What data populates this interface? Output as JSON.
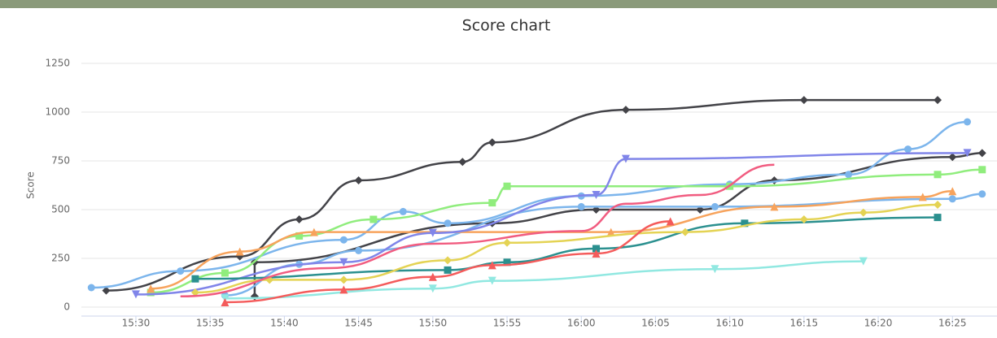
{
  "chart_data": {
    "type": "line",
    "title": "Score chart",
    "y_label": "Score",
    "xlim": [
      "15:26",
      "16:28"
    ],
    "xticks": [
      "15:30",
      "15:35",
      "15:40",
      "15:45",
      "15:50",
      "15:55",
      "16:00",
      "16:05",
      "16:10",
      "16:15",
      "16:20",
      "16:25"
    ],
    "ylim": [
      0,
      1250
    ],
    "yticks": [
      0,
      250,
      500,
      750,
      1000,
      1250
    ],
    "grid": true,
    "series": [
      {
        "color": "#434348",
        "marker": "diamond",
        "x": [
          "15:28",
          "15:37",
          "15:41",
          "15:45",
          "15:52",
          "15:54",
          "16:03",
          "16:15",
          "16:24"
        ],
        "values": [
          85,
          260,
          450,
          650,
          745,
          845,
          1012,
          1062,
          1062
        ]
      },
      {
        "color": "#434348",
        "marker": "diamond",
        "x": [
          "15:38",
          "15:38",
          "15:54",
          "16:01",
          "16:08",
          "16:13",
          "16:25",
          "16:27"
        ],
        "values": [
          55,
          230,
          430,
          500,
          500,
          650,
          770,
          790
        ]
      },
      {
        "color": "#7cb5ec",
        "marker": "circle",
        "x": [
          "15:27",
          "15:33",
          "15:44",
          "15:48",
          "15:51",
          "16:00",
          "16:10",
          "16:18",
          "16:22",
          "16:26"
        ],
        "values": [
          100,
          185,
          345,
          490,
          430,
          570,
          630,
          680,
          810,
          950
        ]
      },
      {
        "color": "#7cb5ec",
        "marker": "circle",
        "x": [
          "15:36",
          "15:41",
          "15:45",
          "16:00",
          "16:09",
          "16:25",
          "16:27"
        ],
        "values": [
          60,
          220,
          290,
          515,
          515,
          555,
          580
        ]
      },
      {
        "color": "#90ed7d",
        "marker": "square",
        "x": [
          "15:31",
          "15:36",
          "15:41",
          "15:46",
          "15:54",
          "15:55",
          "16:10",
          "16:24",
          "16:27"
        ],
        "values": [
          75,
          175,
          365,
          450,
          535,
          620,
          620,
          680,
          705
        ]
      },
      {
        "color": "#f7a35c",
        "marker": "triangle",
        "x": [
          "15:31",
          "15:37",
          "15:42",
          "16:02",
          "16:13",
          "16:23",
          "16:25"
        ],
        "values": [
          95,
          285,
          385,
          385,
          515,
          565,
          595
        ]
      },
      {
        "color": "#8085e9",
        "marker": "triangle-down",
        "x": [
          "15:30",
          "15:44",
          "15:50",
          "16:01",
          "16:03",
          "16:26"
        ],
        "values": [
          65,
          230,
          380,
          575,
          760,
          790
        ]
      },
      {
        "color": "#2b908f",
        "marker": "square",
        "x": [
          "15:34",
          "15:51",
          "15:55",
          "16:01",
          "16:11",
          "16:24"
        ],
        "values": [
          145,
          190,
          230,
          300,
          430,
          460
        ]
      },
      {
        "color": "#91e8e1",
        "marker": "triangle-down",
        "x": [
          "15:36",
          "15:50",
          "15:54",
          "16:09",
          "16:19"
        ],
        "values": [
          45,
          95,
          135,
          195,
          235
        ]
      },
      {
        "color": "#e4d354",
        "marker": "diamond",
        "x": [
          "15:34",
          "15:39",
          "15:44",
          "15:51",
          "15:55",
          "16:07",
          "16:15",
          "16:19",
          "16:24"
        ],
        "values": [
          75,
          140,
          140,
          240,
          330,
          385,
          450,
          485,
          525
        ]
      },
      {
        "color": "#f45b5b",
        "marker": "triangle",
        "x": [
          "15:36",
          "15:44",
          "15:50",
          "15:54",
          "16:01",
          "16:06"
        ],
        "values": [
          25,
          90,
          155,
          215,
          275,
          440
        ]
      },
      {
        "color": "#f15c80",
        "marker": "none",
        "x": [
          "15:33",
          "15:43",
          "15:50",
          "16:00",
          "16:03",
          "16:08",
          "16:13"
        ],
        "values": [
          55,
          200,
          325,
          390,
          530,
          575,
          730
        ]
      }
    ]
  }
}
